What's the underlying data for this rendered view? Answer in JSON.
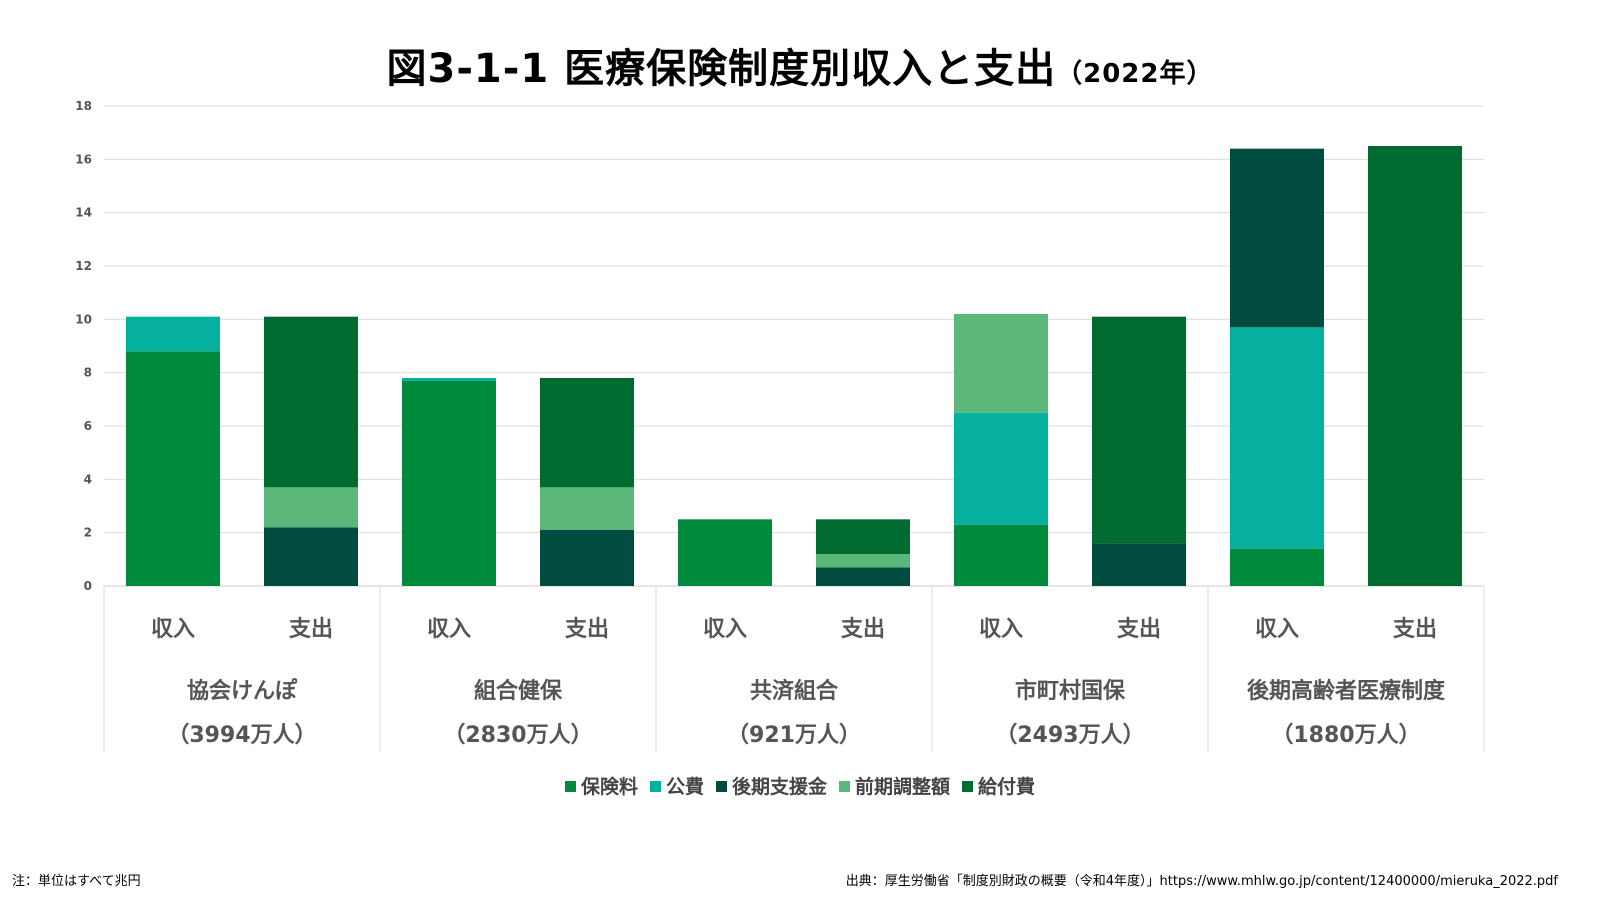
{
  "title": "図3-1-1 医療保険制度別収入と支出",
  "subtitle": "（2022年）",
  "note": "注：単位はすべて兆円",
  "source": "出典：厚生労働省「制度別財政の概要（令和4年度）」https://www.mhlw.go.jp/content/12400000/mieruka_2022.pdf",
  "colors": {
    "保険料": "#008a3e",
    "公費": "#06b09f",
    "後期支援金": "#004d3f",
    "前期調整額": "#5cb87a",
    "給付費": "#006b30"
  },
  "chart_data": {
    "type": "bar",
    "stacked": true,
    "ylim": [
      0,
      18
    ],
    "yticks": [
      "0",
      "2",
      "4",
      "6",
      "8",
      "10",
      "12",
      "14",
      "16",
      "18"
    ],
    "grid": true,
    "legend_position": "bottom",
    "bar_labels": [
      "収入",
      "支出"
    ],
    "groups": [
      {
        "name": "協会けんぽ",
        "members": "（3994万人）"
      },
      {
        "name": "組合健保",
        "members": "（2830万人）"
      },
      {
        "name": "共済組合",
        "members": "（921万人）"
      },
      {
        "name": "市町村国保",
        "members": "（2493万人）"
      },
      {
        "name": "後期高齢者医療制度",
        "members": "（1880万人）"
      }
    ],
    "bars": [
      {
        "group": 0,
        "kind": "収入",
        "stack": [
          {
            "series": "保険料",
            "value": 8.8
          },
          {
            "series": "公費",
            "value": 1.3
          }
        ]
      },
      {
        "group": 0,
        "kind": "支出",
        "stack": [
          {
            "series": "後期支援金",
            "value": 2.2
          },
          {
            "series": "前期調整額",
            "value": 1.5
          },
          {
            "series": "給付費",
            "value": 6.4
          }
        ]
      },
      {
        "group": 1,
        "kind": "収入",
        "stack": [
          {
            "series": "保険料",
            "value": 7.7
          },
          {
            "series": "公費",
            "value": 0.1
          }
        ]
      },
      {
        "group": 1,
        "kind": "支出",
        "stack": [
          {
            "series": "後期支援金",
            "value": 2.1
          },
          {
            "series": "前期調整額",
            "value": 1.6
          },
          {
            "series": "給付費",
            "value": 4.1
          }
        ]
      },
      {
        "group": 2,
        "kind": "収入",
        "stack": [
          {
            "series": "保険料",
            "value": 2.5
          }
        ]
      },
      {
        "group": 2,
        "kind": "支出",
        "stack": [
          {
            "series": "後期支援金",
            "value": 0.7
          },
          {
            "series": "前期調整額",
            "value": 0.5
          },
          {
            "series": "給付費",
            "value": 1.3
          }
        ]
      },
      {
        "group": 3,
        "kind": "収入",
        "stack": [
          {
            "series": "保険料",
            "value": 2.3
          },
          {
            "series": "公費",
            "value": 4.2
          },
          {
            "series": "前期調整額",
            "value": 3.7
          }
        ]
      },
      {
        "group": 3,
        "kind": "支出",
        "stack": [
          {
            "series": "後期支援金",
            "value": 1.6
          },
          {
            "series": "給付費",
            "value": 8.5
          }
        ]
      },
      {
        "group": 4,
        "kind": "収入",
        "stack": [
          {
            "series": "保険料",
            "value": 1.4
          },
          {
            "series": "公費",
            "value": 8.3
          },
          {
            "series": "後期支援金",
            "value": 6.7
          }
        ]
      },
      {
        "group": 4,
        "kind": "支出",
        "stack": [
          {
            "series": "給付費",
            "value": 16.5
          }
        ]
      }
    ],
    "series": [
      {
        "name": "保険料"
      },
      {
        "name": "公費"
      },
      {
        "name": "後期支援金"
      },
      {
        "name": "前期調整額"
      },
      {
        "name": "給付費"
      }
    ]
  }
}
